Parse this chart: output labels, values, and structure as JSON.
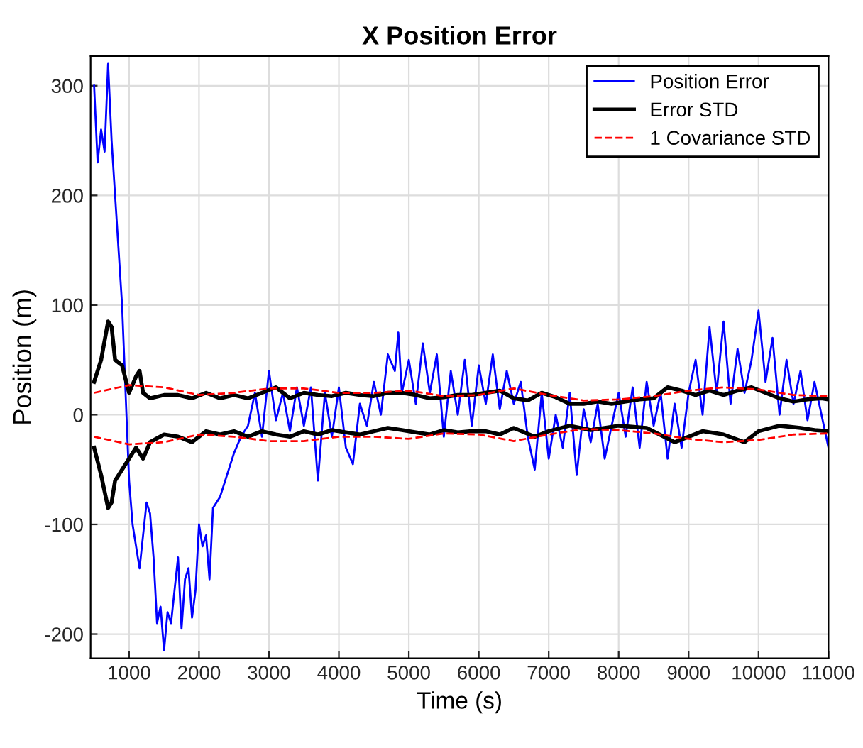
{
  "chart_data": {
    "type": "line",
    "title": "X Position Error",
    "xlabel": "Time (s)",
    "ylabel": "Position (m)",
    "xlim": [
      450,
      11000
    ],
    "ylim": [
      -222,
      327
    ],
    "xticks": [
      1000,
      2000,
      3000,
      4000,
      5000,
      6000,
      7000,
      8000,
      9000,
      10000,
      11000
    ],
    "yticks": [
      -200,
      -100,
      0,
      100,
      200,
      300
    ],
    "grid": true,
    "legend": "top right",
    "series": [
      {
        "name": "Position Error",
        "color": "#0000ff",
        "line_style": "solid",
        "x": [
          500,
          550,
          600,
          650,
          700,
          750,
          800,
          900,
          950,
          1000,
          1050,
          1100,
          1150,
          1200,
          1250,
          1300,
          1350,
          1400,
          1450,
          1500,
          1550,
          1600,
          1650,
          1700,
          1750,
          1800,
          1850,
          1900,
          1950,
          2000,
          2050,
          2100,
          2150,
          2200,
          2300,
          2400,
          2500,
          2600,
          2700,
          2800,
          2900,
          3000,
          3100,
          3200,
          3300,
          3400,
          3500,
          3600,
          3700,
          3800,
          3900,
          4000,
          4100,
          4200,
          4300,
          4400,
          4500,
          4600,
          4700,
          4800,
          4850,
          4900,
          5000,
          5100,
          5200,
          5300,
          5400,
          5500,
          5600,
          5700,
          5800,
          5900,
          6000,
          6100,
          6200,
          6300,
          6400,
          6500,
          6600,
          6700,
          6800,
          6900,
          7000,
          7100,
          7200,
          7300,
          7400,
          7500,
          7600,
          7700,
          7800,
          7900,
          8000,
          8100,
          8200,
          8300,
          8400,
          8500,
          8600,
          8700,
          8800,
          8900,
          9000,
          9100,
          9200,
          9300,
          9400,
          9500,
          9600,
          9700,
          9800,
          9900,
          10000,
          10100,
          10200,
          10300,
          10400,
          10500,
          10600,
          10700,
          10800,
          10900,
          11000
        ],
        "values": [
          300,
          230,
          260,
          240,
          320,
          250,
          200,
          100,
          20,
          -60,
          -100,
          -120,
          -140,
          -110,
          -80,
          -90,
          -130,
          -190,
          -175,
          -215,
          -180,
          -190,
          -160,
          -130,
          -195,
          -150,
          -140,
          -185,
          -160,
          -100,
          -120,
          -110,
          -150,
          -85,
          -75,
          -55,
          -35,
          -20,
          -10,
          20,
          -20,
          40,
          -5,
          20,
          -15,
          25,
          -10,
          25,
          -60,
          20,
          -20,
          25,
          -30,
          -45,
          10,
          -10,
          30,
          0,
          55,
          40,
          75,
          20,
          50,
          10,
          65,
          20,
          55,
          -20,
          40,
          0,
          50,
          -10,
          45,
          10,
          55,
          5,
          40,
          10,
          30,
          -20,
          -50,
          20,
          -40,
          0,
          -30,
          20,
          -55,
          5,
          -25,
          10,
          -40,
          -10,
          20,
          -20,
          25,
          -30,
          30,
          -10,
          20,
          -40,
          10,
          -30,
          20,
          50,
          0,
          80,
          20,
          85,
          10,
          60,
          20,
          50,
          95,
          30,
          70,
          0,
          50,
          10,
          40,
          -5,
          30,
          0,
          -30
        ]
      },
      {
        "name": "Error STD",
        "color": "#000000",
        "line_style": "solid",
        "x": [
          500,
          600,
          700,
          750,
          800,
          900,
          1000,
          1100,
          1150,
          1200,
          1300,
          1500,
          1700,
          1900,
          2100,
          2300,
          2500,
          2700,
          2900,
          3100,
          3300,
          3500,
          3700,
          3900,
          4100,
          4300,
          4500,
          4700,
          4900,
          5100,
          5300,
          5500,
          5700,
          5900,
          6100,
          6300,
          6500,
          6700,
          6900,
          7100,
          7300,
          7500,
          7700,
          7900,
          8100,
          8300,
          8500,
          8700,
          8900,
          9100,
          9300,
          9500,
          9700,
          9900,
          10100,
          10300,
          10500,
          10700,
          10900,
          11000
        ],
        "values": [
          30,
          50,
          85,
          80,
          50,
          45,
          20,
          35,
          40,
          20,
          15,
          18,
          18,
          15,
          20,
          15,
          18,
          15,
          20,
          25,
          15,
          20,
          18,
          17,
          20,
          18,
          17,
          20,
          20,
          18,
          15,
          16,
          18,
          18,
          20,
          22,
          15,
          13,
          20,
          16,
          10,
          10,
          12,
          10,
          12,
          14,
          15,
          25,
          22,
          18,
          22,
          18,
          22,
          25,
          20,
          15,
          12,
          14,
          15,
          14
        ]
      },
      {
        "color": "#000000",
        "line_style": "solid",
        "x": [
          500,
          600,
          700,
          750,
          800,
          900,
          1000,
          1100,
          1200,
          1300,
          1500,
          1700,
          1900,
          2100,
          2300,
          2500,
          2700,
          2900,
          3100,
          3300,
          3500,
          3700,
          3900,
          4100,
          4300,
          4500,
          4700,
          4900,
          5100,
          5300,
          5500,
          5700,
          5900,
          6100,
          6300,
          6500,
          6800,
          7000,
          7300,
          7600,
          8000,
          8400,
          8800,
          9200,
          9500,
          9800,
          10000,
          10300,
          10600,
          10800,
          11000
        ],
        "values": [
          -30,
          -55,
          -85,
          -80,
          -60,
          -50,
          -40,
          -30,
          -40,
          -25,
          -18,
          -20,
          -25,
          -15,
          -18,
          -15,
          -20,
          -15,
          -18,
          -20,
          -15,
          -18,
          -14,
          -16,
          -18,
          -15,
          -12,
          -14,
          -16,
          -18,
          -14,
          -16,
          -15,
          -15,
          -18,
          -12,
          -20,
          -15,
          -10,
          -14,
          -10,
          -12,
          -25,
          -15,
          -18,
          -25,
          -15,
          -10,
          -12,
          -14,
          -15
        ]
      },
      {
        "name": "1 Covariance STD",
        "color": "#ff0000",
        "line_style": "dashed",
        "x": [
          500,
          1000,
          1500,
          2000,
          2500,
          3000,
          3500,
          4000,
          4500,
          5000,
          5500,
          6000,
          6500,
          7000,
          7500,
          8000,
          8500,
          9000,
          9500,
          10000,
          10500,
          11000
        ],
        "values": [
          20,
          27,
          25,
          18,
          20,
          24,
          24,
          20,
          20,
          22,
          17,
          18,
          24,
          18,
          13,
          14,
          17,
          22,
          25,
          23,
          18,
          17
        ]
      },
      {
        "color": "#ff0000",
        "line_style": "dashed",
        "x": [
          500,
          1000,
          1500,
          2000,
          2500,
          3000,
          3500,
          4000,
          4500,
          5000,
          5500,
          6000,
          6500,
          7000,
          7500,
          8000,
          8500,
          9000,
          9500,
          10000,
          10500,
          11000
        ],
        "values": [
          -20,
          -27,
          -25,
          -18,
          -20,
          -24,
          -24,
          -20,
          -20,
          -22,
          -17,
          -18,
          -24,
          -18,
          -13,
          -14,
          -17,
          -22,
          -25,
          -23,
          -18,
          -17
        ]
      }
    ]
  }
}
